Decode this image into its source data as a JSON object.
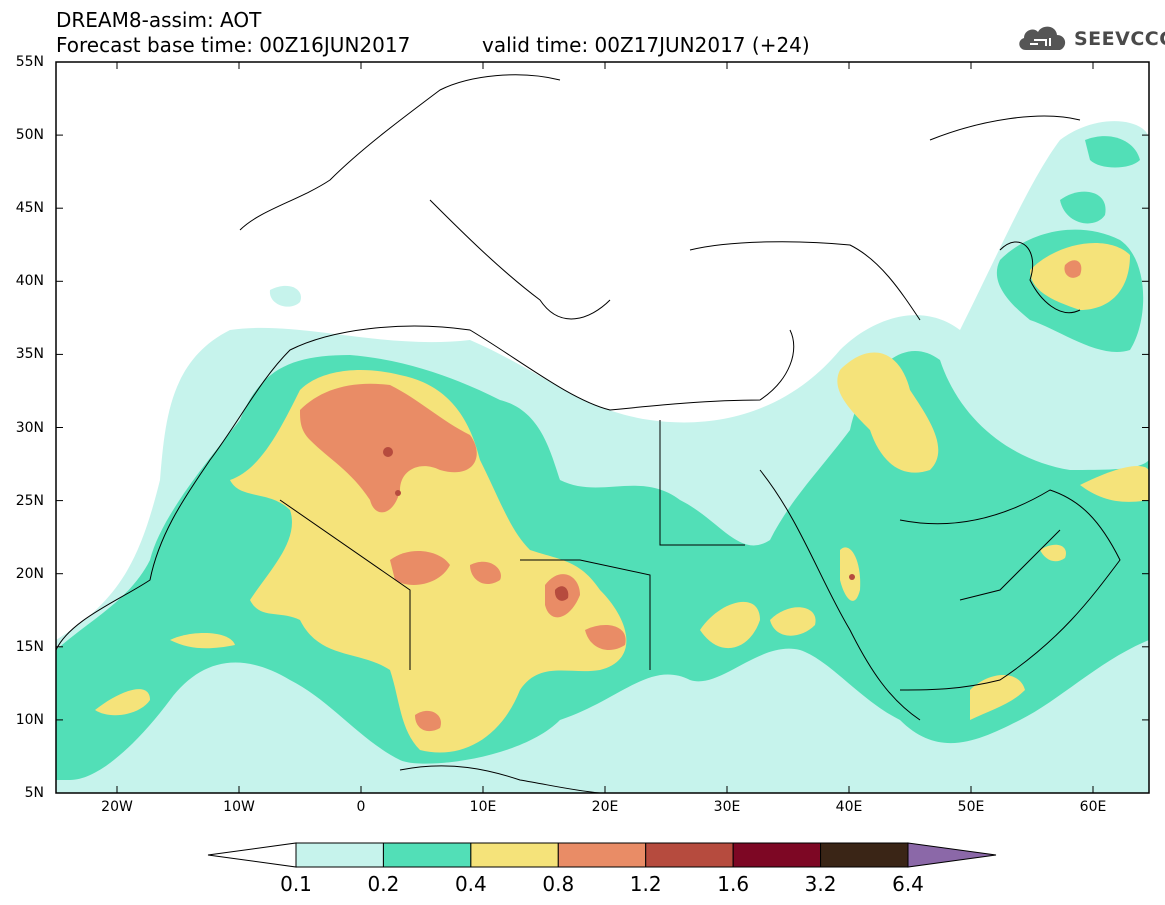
{
  "header": {
    "title": "DREAM8-assim: AOT",
    "base_time": "Forecast base time: 00Z16JUN2017",
    "valid_time": "valid time: 00Z17JUN2017 (+24)"
  },
  "logo": {
    "text": "SEEVCCC",
    "icon": "cloud-icon"
  },
  "axes": {
    "lat_ticks": [
      "55N",
      "50N",
      "45N",
      "40N",
      "35N",
      "30N",
      "25N",
      "20N",
      "15N",
      "10N",
      "5N"
    ],
    "lon_ticks": [
      "20W",
      "10W",
      "0",
      "10E",
      "20E",
      "30E",
      "40E",
      "50E",
      "60E"
    ]
  },
  "colorbar": {
    "labels": [
      "0.1",
      "0.2",
      "0.4",
      "0.8",
      "1.2",
      "1.6",
      "3.2",
      "6.4"
    ],
    "colors": [
      "#ffffff",
      "#c6f3ec",
      "#52dfb7",
      "#f5e37a",
      "#e98c66",
      "#b64b3e",
      "#7d0724",
      "#3a2516",
      "#8b68a8"
    ]
  }
}
